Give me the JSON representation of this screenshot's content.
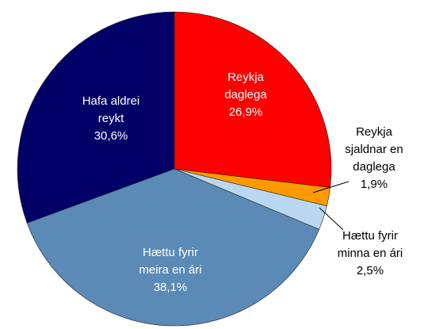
{
  "chart_data": {
    "type": "pie",
    "categories": [
      "Reykja daglega",
      "Reykja sjaldnar en daglega",
      "Hættu fyrir minna en ári",
      "Hættu fyrir meira en ári",
      "Hafa aldrei reykt"
    ],
    "values": [
      26.9,
      1.9,
      2.5,
      38.1,
      30.6
    ],
    "value_labels": [
      "26,9%",
      "1,9%",
      "2,5%",
      "38,1%",
      "30,6%"
    ],
    "colors": [
      "#ff0000",
      "#ff9900",
      "#b9d7f0",
      "#5a8ab5",
      "#000066"
    ]
  }
}
